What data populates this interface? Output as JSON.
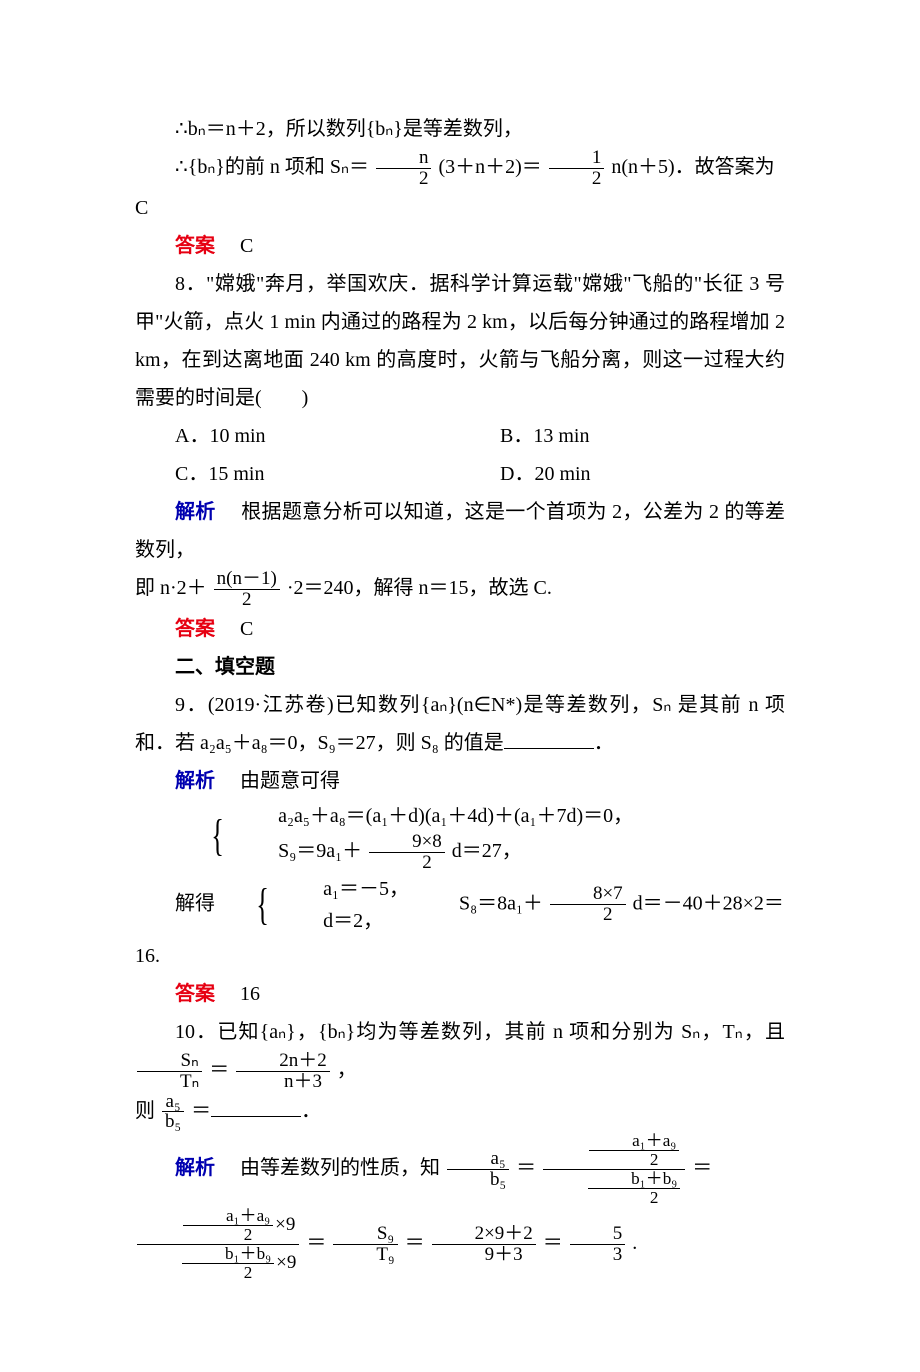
{
  "p1": "∴bₙ＝n＋2，所以数列{bₙ}是等差数列，",
  "p2_a": "∴{bₙ}的前 n 项和 Sₙ＝",
  "p2_frac1_num": "n",
  "p2_frac1_den": "2",
  "p2_b": "(3＋n＋2)＝",
  "p2_frac2_num": "1",
  "p2_frac2_den": "2",
  "p2_c": "n(n＋5)．故答案为 C",
  "ans_label": "答案",
  "jx_label": "解析",
  "ans7": "C",
  "q8_text": "8．\"嫦娥\"奔月，举国欢庆．据科学计算运载\"嫦娥\"飞船的\"长征 3 号甲\"火箭，点火 1 min 内通过的路程为 2 km，以后每分钟通过的路程增加 2 km，在到达离地面 240 km 的高度时，火箭与飞船分离，则这一过程大约需要的时间是(　　)",
  "q8_A": "A．10 min",
  "q8_B": "B．13 min",
  "q8_C": "C．15 min",
  "q8_D": "D．20 min",
  "jx8_a": "根据题意分析可以知道，这是一个首项为 2，公差为 2 的等差数列，",
  "jx8_b_pre": "即 n·2＋",
  "jx8_frac_num": "n(n－1)",
  "jx8_frac_den": "2",
  "jx8_b_post": "·2＝240，解得 n＝15，故选 C.",
  "ans8": "C",
  "sec2": "二、填空题",
  "q9_a": "9．(2019·江苏卷)已知数列{aₙ}(n∈N*)是等差数列，Sₙ 是其前 n 项和．若 a₂a₅＋a₈＝0，S₉＝27，则 S₈ 的值是",
  "q9_b": "．",
  "jx9_lead": "由题意可得",
  "jx9_r1_a": "a₂a₅＋a₈＝(a₁＋d)(a₁＋4d)＋(a₁＋7d)＝0，",
  "jx9_r2_a": "S₉＝9a₁＋",
  "jx9_r2_fnum": "9×8",
  "jx9_r2_fden": "2",
  "jx9_r2_b": "d＝27，",
  "jx9_solve_lead": "解得",
  "jx9_sol_r1": "a₁＝－5，",
  "jx9_sol_r2": "d＝2，",
  "jx9_s8_a": "S₈＝8a₁＋",
  "jx9_s8_fnum": "8×7",
  "jx9_s8_fden": "2",
  "jx9_s8_b": "d＝－40＋28×2＝16.",
  "ans9": "16",
  "q10_a": "10．已知{aₙ}，{bₙ}均为等差数列，其前 n 项和分别为 Sₙ，Tₙ，且",
  "q10_f1num": "Sₙ",
  "q10_f1den": "Tₙ",
  "q10_mid": "＝",
  "q10_f2num": "2n＋2",
  "q10_f2den": "n＋3",
  "q10_tail": "，",
  "q10_line2_a": "则",
  "q10_f3num": "a₅",
  "q10_f3den": "b₅",
  "q10_line2_b": "＝",
  "q10_line2_c": "．",
  "jx10_lead": "由等差数列的性质，知",
  "jx10_fa_num": "a₅",
  "jx10_fa_den": "b₅",
  "jx10_eq": "＝",
  "jx10_fb_num_fnum": "a₁＋a₉",
  "jx10_fb_num_fden": "2",
  "jx10_fb_den_fnum": "b₁＋b₉",
  "jx10_fb_den_fden": "2",
  "jx10_fc_num_tail": "×9",
  "jx10_fd_num": "S₉",
  "jx10_fd_den": "T₉",
  "jx10_fe_num": "2×9＋2",
  "jx10_fe_den": "9＋3",
  "jx10_ff_num": "5",
  "jx10_ff_den": "3",
  "jx10_end": "."
}
